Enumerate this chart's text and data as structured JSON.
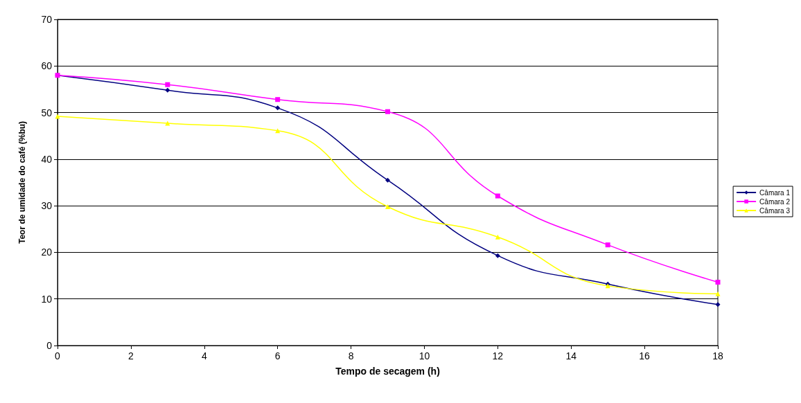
{
  "chart_data": {
    "type": "line",
    "xlabel": "Tempo de secagem (h)",
    "ylabel": "Teor de umidade do café (%bu)",
    "x": [
      0,
      3,
      6,
      9,
      12,
      15,
      18
    ],
    "series": [
      {
        "name": "Câmara 1",
        "color": "#000080",
        "marker": "diamond",
        "values": [
          58,
          54.8,
          51,
          35.5,
          19.3,
          13.2,
          8.8
        ]
      },
      {
        "name": "Câmara 2",
        "color": "#ff00ff",
        "marker": "square",
        "values": [
          58,
          56,
          52.8,
          50.2,
          32.1,
          21.6,
          13.6
        ]
      },
      {
        "name": "Câmara 3",
        "color": "#ffff00",
        "marker": "triangle",
        "values": [
          49.2,
          47.7,
          46.1,
          29.8,
          23.3,
          12.8,
          11.1
        ]
      }
    ],
    "xlim": [
      0,
      18
    ],
    "xticks": [
      0,
      2,
      4,
      6,
      8,
      10,
      12,
      14,
      16,
      18
    ],
    "ylim": [
      0,
      70
    ],
    "yticks": [
      0,
      10,
      20,
      30,
      40,
      50,
      60,
      70
    ],
    "grid": "y",
    "legend": "right",
    "line_style": "solid"
  }
}
